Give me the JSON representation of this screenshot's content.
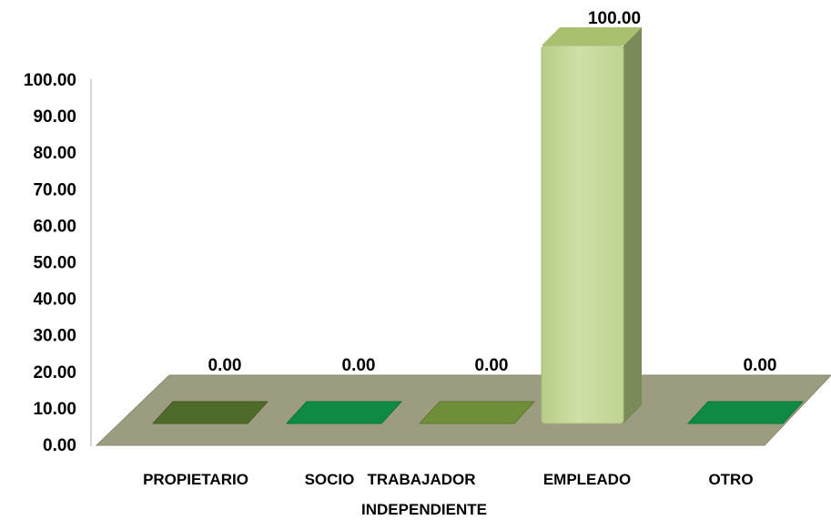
{
  "chart_data": {
    "type": "bar",
    "categories": [
      "PROPIETARIO",
      "SOCIO",
      "TRABAJADOR INDEPENDIENTE",
      "EMPLEADO",
      "OTRO"
    ],
    "category_lines": [
      [
        "PROPIETARIO"
      ],
      [
        "SOCIO"
      ],
      [
        "TRABAJADOR",
        "INDEPENDIENTE"
      ],
      [
        "EMPLEADO"
      ],
      [
        "OTRO"
      ]
    ],
    "values": [
      0.0,
      0.0,
      0.0,
      100.0,
      0.0
    ],
    "value_labels": [
      "0.00",
      "0.00",
      "0.00",
      "100.00",
      "0.00"
    ],
    "y_ticks": [
      "0.00",
      "10.00",
      "20.00",
      "30.00",
      "40.00",
      "50.00",
      "60.00",
      "70.00",
      "80.00",
      "90.00",
      "100.00"
    ],
    "ylim": [
      0,
      100
    ],
    "title": "",
    "xlabel": "",
    "ylabel": "",
    "grid": false,
    "legend": "none",
    "bar_colors": [
      "#4f6b2a",
      "#0e8a45",
      "#6f8e3a",
      "#c4d89a",
      "#0e8a45"
    ],
    "floor_color": "#9c9c80"
  }
}
